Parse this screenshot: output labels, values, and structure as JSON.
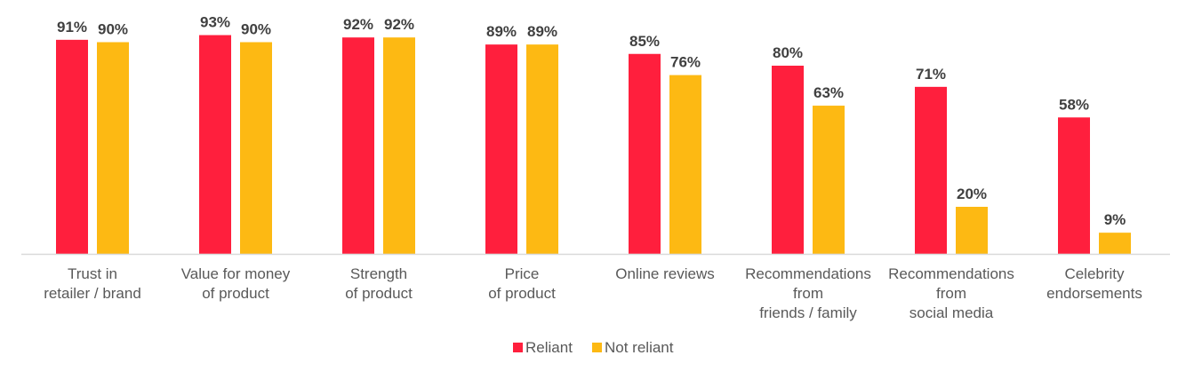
{
  "chart_data": {
    "type": "bar",
    "title": "",
    "xlabel": "",
    "ylabel": "",
    "ylim": [
      0,
      100
    ],
    "grid": false,
    "legend_position": "bottom",
    "categories": [
      [
        "Trust in",
        "retailer / brand"
      ],
      [
        "Value for money",
        "of product"
      ],
      [
        "Strength",
        "of product"
      ],
      [
        "Price",
        "of product"
      ],
      [
        "Online reviews"
      ],
      [
        "Recommendations",
        "from",
        "friends / family"
      ],
      [
        "Recommendations",
        "from",
        "social media"
      ],
      [
        "Celebrity",
        "endorsements"
      ]
    ],
    "series": [
      {
        "name": "Reliant",
        "color": "#FF1F3D",
        "values": [
          91,
          93,
          92,
          89,
          85,
          80,
          71,
          58
        ]
      },
      {
        "name": "Not reliant",
        "color": "#FDB913",
        "values": [
          90,
          90,
          92,
          89,
          76,
          63,
          20,
          9
        ]
      }
    ],
    "value_suffix": "%"
  }
}
